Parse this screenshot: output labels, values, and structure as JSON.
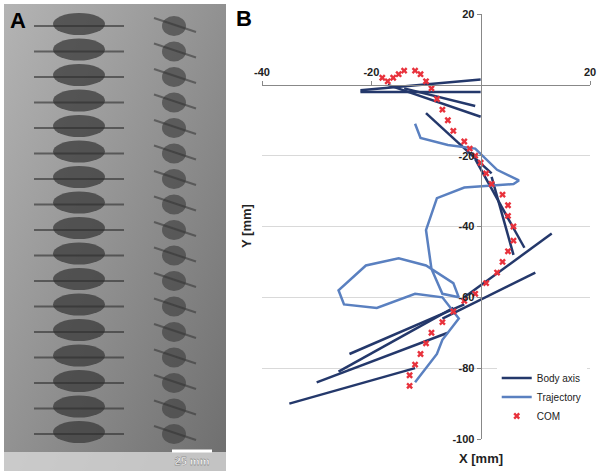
{
  "panels": [
    {
      "label": "A",
      "scale_bar": "25 mm"
    },
    {
      "label": "B"
    }
  ],
  "chart_data": {
    "type": "line",
    "x_label": "X [mm]",
    "y_label": "Y [mm]",
    "xlim": [
      -40,
      20
    ],
    "xticks": [
      -40,
      -20,
      20
    ],
    "ylim": [
      -100,
      20
    ],
    "yticks": [
      20,
      -20,
      -40,
      -60,
      -80,
      -100
    ],
    "grid": "y",
    "legend": "lower right",
    "series": [
      {
        "name": "Body axis",
        "type": "line",
        "color": "#24386b",
        "line_style": "solid",
        "x": [
          -22,
          0,
          null,
          -22,
          0,
          null,
          -17,
          0,
          null,
          -14,
          -1,
          null,
          -10,
          2,
          null,
          -1,
          8,
          null,
          2,
          6,
          null,
          13,
          -3,
          null,
          10,
          -7,
          null,
          -3,
          -24,
          null,
          -5,
          -26,
          null,
          -6,
          -30,
          null,
          -12,
          -35
        ],
        "y": [
          -1.5,
          1.5,
          null,
          -2,
          -2,
          null,
          0,
          -9,
          null,
          -1,
          -6,
          null,
          -8,
          -25,
          null,
          -21,
          -46,
          null,
          -26,
          -48,
          null,
          -42,
          -60,
          null,
          -53,
          -66,
          null,
          -62,
          -76,
          null,
          -63,
          -81,
          null,
          -70,
          -84,
          null,
          -80,
          -90
        ]
      },
      {
        "name": "Trajectory",
        "type": "line",
        "color": "#5a80c0",
        "line_style": "solid",
        "x": [
          -12,
          -11,
          -6,
          -1,
          3,
          7,
          6,
          -3,
          -8,
          -10,
          -9,
          -7,
          -4,
          -5,
          -10,
          -15,
          -21,
          -26,
          -25,
          -19,
          -12,
          -7,
          -4,
          -7,
          -8,
          -10,
          -12
        ],
        "y": [
          -11,
          -15,
          -17,
          -18,
          -24,
          -27,
          -28,
          -29,
          -32,
          -41,
          -52,
          -59,
          -60,
          -56,
          -51,
          -49,
          -51,
          -58,
          -62,
          -63,
          -59,
          -60,
          -66,
          -72,
          -76,
          -80,
          -84
        ]
      },
      {
        "name": "COM",
        "type": "scatter",
        "marker": "x",
        "color": "#e8323c",
        "x": [
          -18,
          -17,
          -16,
          -15,
          -14,
          -12,
          -11,
          -10,
          -9,
          -8,
          -7,
          -6,
          -5,
          -3,
          -2,
          -1,
          0,
          1,
          2,
          4,
          5,
          5,
          6,
          6,
          5,
          4,
          3,
          1,
          -1,
          -3,
          -5,
          -7,
          -9,
          -10,
          -11,
          -12,
          -13,
          -13
        ],
        "y": [
          2,
          1,
          2,
          3,
          4,
          4,
          3,
          1,
          -1,
          -4,
          -7,
          -10,
          -13,
          -16,
          -18,
          -20,
          -22,
          -25,
          -28,
          -31,
          -34,
          -37,
          -40,
          -44,
          -47,
          -50,
          -53,
          -56,
          -59,
          -61,
          -64,
          -67,
          -70,
          -73,
          -76,
          -79,
          -82,
          -85
        ]
      }
    ]
  }
}
